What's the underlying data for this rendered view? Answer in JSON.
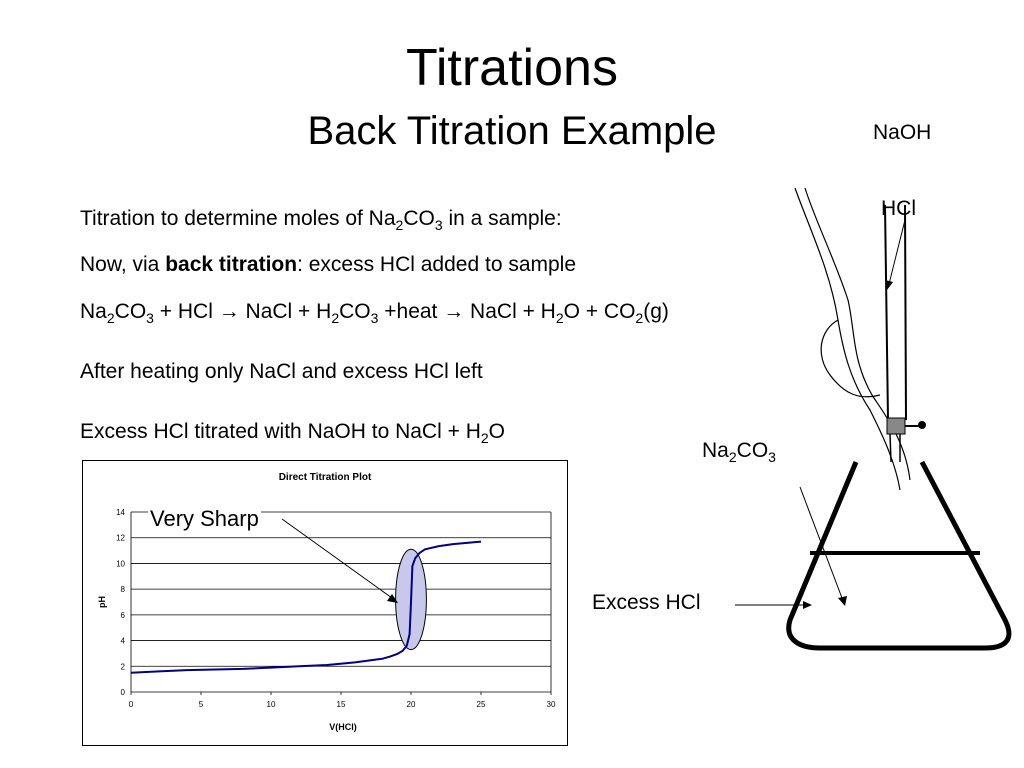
{
  "slide": {
    "title": "Titrations",
    "subtitle": "Back Titration Example"
  },
  "body": {
    "line1": {
      "a": "Titration to determine moles of Na",
      "s1": "2",
      "b": "CO",
      "s2": "3",
      "c": " in a sample:"
    },
    "line2": {
      "a": "Now, via ",
      "bold": "back titration",
      "c": ": excess HCl added to sample"
    },
    "line3": {
      "a": "Na",
      "s1": "2",
      "b": "CO",
      "s2": "3",
      "c": " + HCl → NaCl + H",
      "s3": "2",
      "d": "CO",
      "s4": "3",
      "e": " +heat → NaCl + H",
      "s5": "2",
      "f": "O + CO",
      "s6": "2",
      "g": "(g)"
    },
    "line4": "After heating only NaCl and excess HCl left",
    "line5": {
      "a": "Excess HCl titrated with NaOH to NaCl + H",
      "s1": "2",
      "b": "O"
    }
  },
  "diagram": {
    "naoh_label": "NaOH",
    "hcl_label": "HCl",
    "na2co3_label": {
      "a": "Na",
      "s1": "2",
      "b": "CO",
      "s2": "3"
    },
    "excess_hcl_label": "Excess HCl"
  },
  "annotation": "Very Sharp",
  "chart_data": {
    "type": "line",
    "title": "Direct Titration Plot",
    "xlabel": "V(HCl)",
    "ylabel": "pH",
    "xlim": [
      0,
      30
    ],
    "ylim": [
      0,
      14
    ],
    "xticks": [
      "0",
      "5",
      "10",
      "15",
      "20",
      "25",
      "30"
    ],
    "yticks": [
      "0",
      "2",
      "4",
      "6",
      "8",
      "10",
      "12",
      "14"
    ],
    "grid": "horizontal",
    "series": [
      {
        "color": "#000080",
        "x": [
          0,
          2,
          4,
          6,
          8,
          10,
          12,
          14,
          16,
          17,
          18,
          18.5,
          19,
          19.4,
          19.7,
          19.9,
          20,
          20.1,
          20.3,
          20.6,
          21,
          22,
          23,
          24,
          25
        ],
        "y": [
          1.5,
          1.6,
          1.7,
          1.75,
          1.8,
          1.9,
          2.0,
          2.1,
          2.3,
          2.45,
          2.6,
          2.75,
          2.95,
          3.2,
          3.6,
          4.5,
          7.0,
          9.8,
          10.4,
          10.8,
          11.1,
          11.35,
          11.5,
          11.6,
          11.7
        ]
      }
    ],
    "highlight_ellipse": {
      "x_center": 20,
      "y_center": 7.2,
      "x_radius": 1.1,
      "y_radius": 3.9,
      "fill": "#c8c8ec"
    }
  }
}
